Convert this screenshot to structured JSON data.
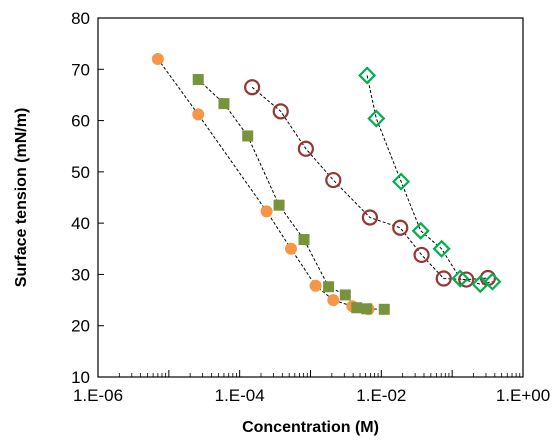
{
  "chart_data": {
    "type": "scatter",
    "title": "",
    "xlabel": "Concentration (M)",
    "ylabel": "Surface tension (mN/m)",
    "x_scale": "log",
    "xlim": [
      1e-06,
      1
    ],
    "ylim": [
      10,
      80
    ],
    "x_ticks": [
      1e-06,
      0.0001,
      0.01,
      1
    ],
    "x_tick_labels": [
      "1.E-06",
      "1.E-04",
      "1.E-02",
      "1.E+00"
    ],
    "y_ticks": [
      10,
      20,
      30,
      40,
      50,
      60,
      70,
      80
    ],
    "y_tick_labels": [
      "10",
      "20",
      "30",
      "40",
      "50",
      "60",
      "70",
      "80"
    ],
    "grid": false,
    "legend": "none",
    "series": [
      {
        "marker": "filled-circle",
        "color": "#F79646",
        "points": [
          [
            7e-06,
            72.0
          ],
          [
            2.6e-05,
            61.2
          ],
          [
            0.00024,
            42.3
          ],
          [
            0.00053,
            35.0
          ],
          [
            0.00118,
            27.8
          ],
          [
            0.0021,
            25.0
          ],
          [
            0.0039,
            23.8
          ],
          [
            0.0066,
            23.2
          ]
        ]
      },
      {
        "marker": "filled-square",
        "color": "#77933C",
        "points": [
          [
            2.6e-05,
            68.0
          ],
          [
            6e-05,
            63.3
          ],
          [
            0.00013,
            57.0
          ],
          [
            0.00036,
            43.5
          ],
          [
            0.00081,
            36.8
          ],
          [
            0.0018,
            27.6
          ],
          [
            0.0031,
            26.0
          ],
          [
            0.0045,
            23.5
          ],
          [
            0.0062,
            23.3
          ],
          [
            0.011,
            23.2
          ]
        ]
      },
      {
        "marker": "open-circle",
        "color": "#943634",
        "points": [
          [
            0.00015,
            66.5
          ],
          [
            0.00038,
            61.8
          ],
          [
            0.00086,
            54.5
          ],
          [
            0.0021,
            48.4
          ],
          [
            0.0069,
            41.1
          ],
          [
            0.0185,
            39.1
          ],
          [
            0.037,
            33.8
          ],
          [
            0.076,
            29.2
          ],
          [
            0.158,
            29.0
          ],
          [
            0.32,
            29.3
          ]
        ]
      },
      {
        "marker": "open-diamond",
        "color": "#00B050",
        "points": [
          [
            0.0063,
            68.8
          ],
          [
            0.0085,
            60.4
          ],
          [
            0.019,
            48.1
          ],
          [
            0.036,
            38.5
          ],
          [
            0.071,
            35.0
          ],
          [
            0.13,
            29.2
          ],
          [
            0.25,
            28.1
          ],
          [
            0.37,
            28.6
          ]
        ]
      }
    ]
  }
}
